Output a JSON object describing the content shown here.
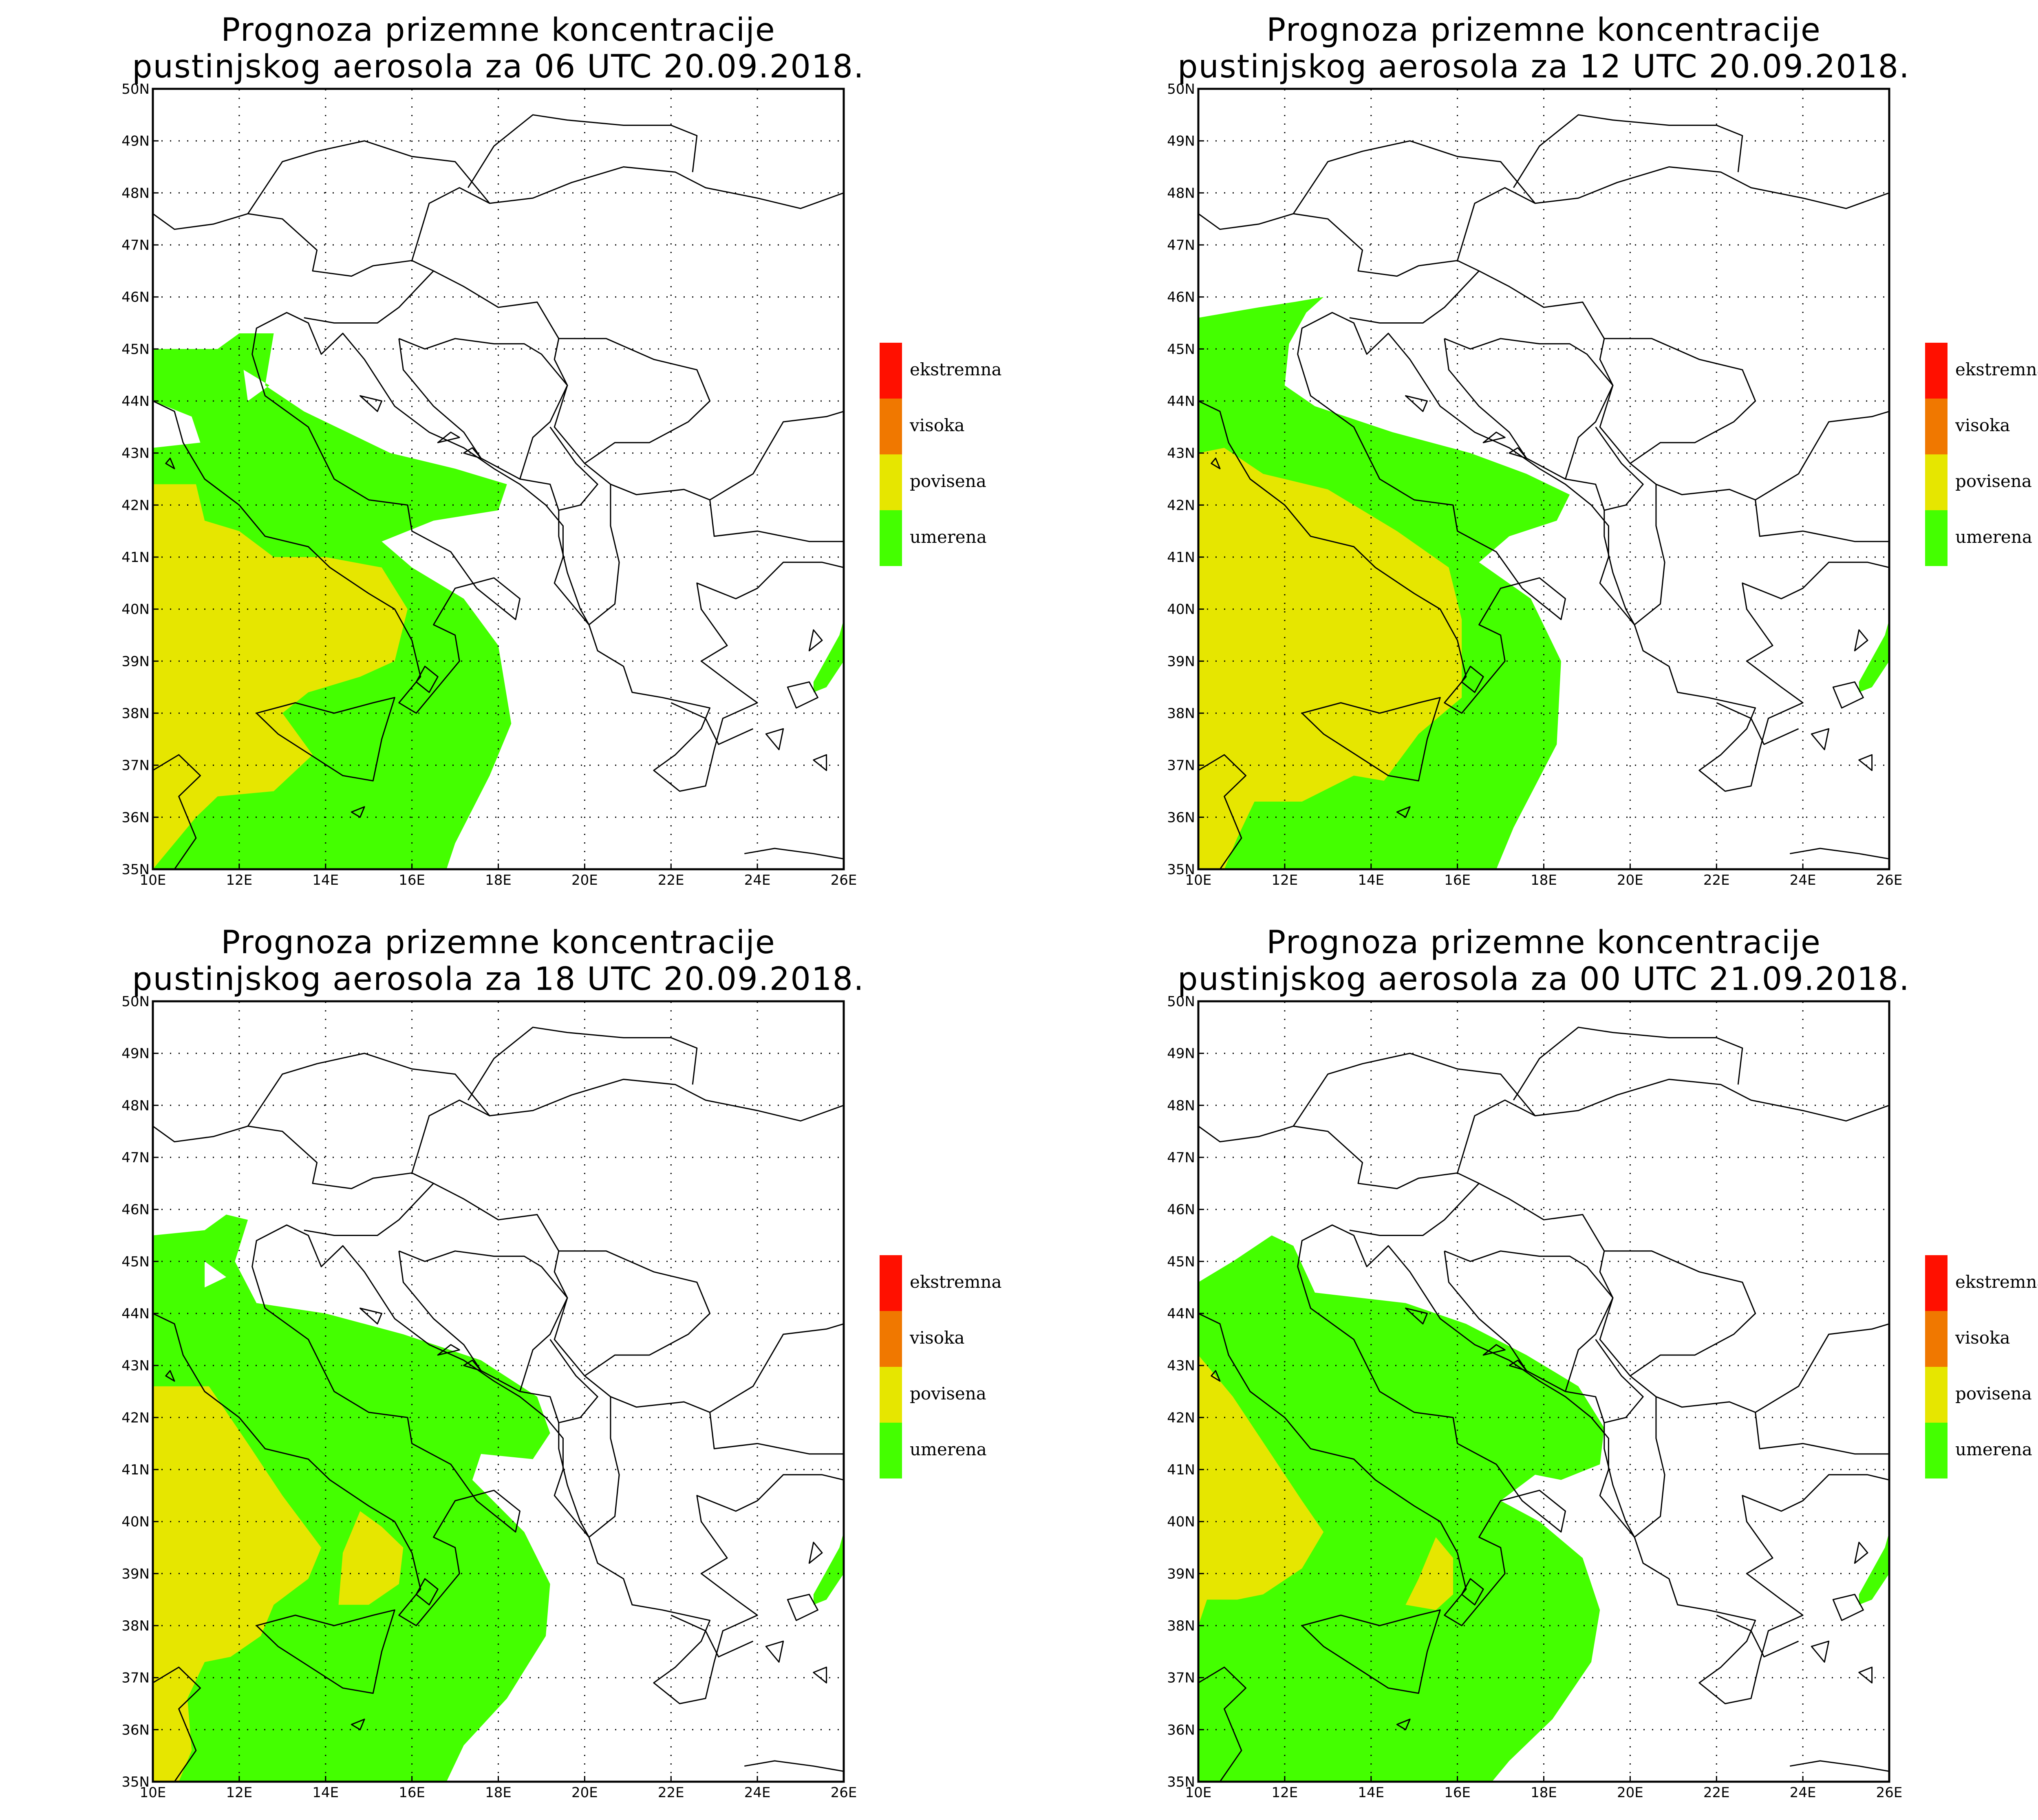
{
  "map": {
    "extent": {
      "lon": [
        10,
        26
      ],
      "lat": [
        35,
        50
      ]
    },
    "lon_ticks": [
      "10E",
      "12E",
      "14E",
      "16E",
      "18E",
      "20E",
      "22E",
      "24E",
      "26E"
    ],
    "lat_ticks": [
      "35N",
      "36N",
      "37N",
      "38N",
      "39N",
      "40N",
      "41N",
      "42N",
      "43N",
      "44N",
      "45N",
      "46N",
      "47N",
      "48N",
      "49N",
      "50N"
    ],
    "grid": "dotted"
  },
  "legend": [
    {
      "label": "ekstremna",
      "color": "#ff1000"
    },
    {
      "label": "visoka",
      "color": "#f07800"
    },
    {
      "label": "povisena",
      "color": "#e6e600"
    },
    {
      "label": "umerena",
      "color": "#44ff00"
    }
  ],
  "panels": [
    {
      "title_line1": "Prognoza prizemne koncentracije",
      "title_line2": "pustinjskog aerosola za 06 UTC 20.09.2018.",
      "green": [
        [
          10,
          45
        ],
        [
          11.5,
          45
        ],
        [
          12,
          45.3
        ],
        [
          12.8,
          45.3
        ],
        [
          12.6,
          44.3
        ],
        [
          13.5,
          43.8
        ],
        [
          15.5,
          43
        ],
        [
          17,
          42.7
        ],
        [
          18.2,
          42.4
        ],
        [
          18,
          41.9
        ],
        [
          16.5,
          41.7
        ],
        [
          15.3,
          41.3
        ],
        [
          16,
          40.8
        ],
        [
          17.2,
          40.2
        ],
        [
          18,
          39.3
        ],
        [
          18.3,
          37.8
        ],
        [
          17.8,
          36.8
        ],
        [
          17,
          35.5
        ],
        [
          16.8,
          35
        ],
        [
          10,
          35
        ]
      ],
      "yellow": [
        [
          10,
          42.4
        ],
        [
          11,
          42.4
        ],
        [
          11.2,
          41.7
        ],
        [
          12,
          41.5
        ],
        [
          12.8,
          41
        ],
        [
          14,
          41
        ],
        [
          15.3,
          40.8
        ],
        [
          15.9,
          40
        ],
        [
          15.6,
          39
        ],
        [
          14.8,
          38.7
        ],
        [
          13.6,
          38.4
        ],
        [
          13,
          38
        ],
        [
          13.7,
          37.2
        ],
        [
          12.8,
          36.5
        ],
        [
          11.5,
          36.4
        ],
        [
          11,
          36
        ],
        [
          10.4,
          35.4
        ],
        [
          10,
          35
        ]
      ],
      "holes": [
        [
          [
            10,
            44
          ],
          [
            10.9,
            43.7
          ],
          [
            11.1,
            43.2
          ],
          [
            10,
            43.1
          ]
        ],
        [
          [
            12.1,
            44.6
          ],
          [
            12.7,
            44.3
          ],
          [
            12.2,
            44
          ]
        ]
      ]
    },
    {
      "title_line1": "Prognoza prizemne koncentracije",
      "title_line2": "pustinjskog aerosola za 12 UTC 20.09.2018.",
      "green": [
        [
          10,
          45.6
        ],
        [
          11.4,
          45.8
        ],
        [
          12.2,
          45.9
        ],
        [
          12.9,
          46
        ],
        [
          12.5,
          45.7
        ],
        [
          12.1,
          45.1
        ],
        [
          12,
          44.3
        ],
        [
          12.7,
          43.9
        ],
        [
          14.5,
          43.4
        ],
        [
          16.3,
          43
        ],
        [
          17.6,
          42.6
        ],
        [
          18.6,
          42.2
        ],
        [
          18.3,
          41.7
        ],
        [
          17.2,
          41.4
        ],
        [
          16.5,
          40.9
        ],
        [
          17.7,
          40.2
        ],
        [
          18.4,
          39
        ],
        [
          18.3,
          37.4
        ],
        [
          17.3,
          35.8
        ],
        [
          16.9,
          35
        ],
        [
          10,
          35
        ]
      ],
      "yellow": [
        [
          10,
          43
        ],
        [
          10.6,
          43.1
        ],
        [
          11.5,
          42.6
        ],
        [
          13,
          42.3
        ],
        [
          14.6,
          41.5
        ],
        [
          15.8,
          40.8
        ],
        [
          16.1,
          39.8
        ],
        [
          16.1,
          38.3
        ],
        [
          15.1,
          37.6
        ],
        [
          14.3,
          36.7
        ],
        [
          13.6,
          36.8
        ],
        [
          12.4,
          36.3
        ],
        [
          11.3,
          36.3
        ],
        [
          10.9,
          35.6
        ],
        [
          10.6,
          35
        ],
        [
          10,
          35
        ]
      ],
      "holes": []
    },
    {
      "title_line1": "Prognoza prizemne koncentracije",
      "title_line2": "pustinjskog aerosola za 18 UTC 20.09.2018.",
      "green": [
        [
          10,
          45.5
        ],
        [
          11.2,
          45.6
        ],
        [
          11.7,
          45.9
        ],
        [
          12.2,
          45.8
        ],
        [
          11.9,
          45
        ],
        [
          12.4,
          44.2
        ],
        [
          14,
          44
        ],
        [
          15.8,
          43.6
        ],
        [
          17.6,
          43.1
        ],
        [
          18.9,
          42.4
        ],
        [
          19.2,
          41.7
        ],
        [
          18.8,
          41.2
        ],
        [
          17.6,
          41.3
        ],
        [
          17.4,
          40.8
        ],
        [
          18.6,
          39.8
        ],
        [
          19.2,
          38.8
        ],
        [
          19.1,
          37.8
        ],
        [
          18.2,
          36.6
        ],
        [
          17.2,
          35.7
        ],
        [
          16.8,
          35
        ],
        [
          10,
          35
        ]
      ],
      "yellow": [
        [
          10,
          42.6
        ],
        [
          11.3,
          42.6
        ],
        [
          12.2,
          41.5
        ],
        [
          13,
          40.5
        ],
        [
          13.9,
          39.5
        ],
        [
          13.6,
          38.9
        ],
        [
          12.8,
          38.4
        ],
        [
          12.5,
          37.8
        ],
        [
          11.8,
          37.4
        ],
        [
          11.2,
          37.3
        ],
        [
          10.8,
          36.6
        ],
        [
          10.9,
          35.6
        ],
        [
          10.6,
          35
        ],
        [
          10,
          35
        ]
      ],
      "yellow2": [
        [
          14.8,
          40.2
        ],
        [
          15.3,
          39.9
        ],
        [
          15.8,
          39.5
        ],
        [
          15.7,
          38.8
        ],
        [
          15,
          38.4
        ],
        [
          14.3,
          38.4
        ],
        [
          14.4,
          39.4
        ]
      ],
      "holes": [
        [
          [
            11.2,
            45
          ],
          [
            11.7,
            44.7
          ],
          [
            11.2,
            44.5
          ]
        ]
      ]
    },
    {
      "title_line1": "Prognoza prizemne koncentracije",
      "title_line2": "pustinjskog aerosola za 00 UTC 21.09.2018.",
      "green": [
        [
          10,
          44.6
        ],
        [
          10.8,
          45
        ],
        [
          11.7,
          45.5
        ],
        [
          12.2,
          45.3
        ],
        [
          12.7,
          44.4
        ],
        [
          14.8,
          44.2
        ],
        [
          16.2,
          43.8
        ],
        [
          17.6,
          43.2
        ],
        [
          18.8,
          42.6
        ],
        [
          19.4,
          41.8
        ],
        [
          19.3,
          41.1
        ],
        [
          18.4,
          40.8
        ],
        [
          17.8,
          40.9
        ],
        [
          17,
          40.4
        ],
        [
          17.9,
          40
        ],
        [
          18.9,
          39.3
        ],
        [
          19.3,
          38.3
        ],
        [
          19.1,
          37.3
        ],
        [
          18.2,
          36.2
        ],
        [
          17.2,
          35.4
        ],
        [
          16.8,
          35
        ],
        [
          10,
          35
        ]
      ],
      "yellow": [
        [
          10,
          43.2
        ],
        [
          10.8,
          42.4
        ],
        [
          11.6,
          41.4
        ],
        [
          12.4,
          40.4
        ],
        [
          12.9,
          39.8
        ],
        [
          12.4,
          39.1
        ],
        [
          11.5,
          38.6
        ],
        [
          10.9,
          38.5
        ],
        [
          10.2,
          38.5
        ],
        [
          10,
          38
        ]
      ],
      "yellow2": [
        [
          15.5,
          39.7
        ],
        [
          15.9,
          39.3
        ],
        [
          15.9,
          38.6
        ],
        [
          15.5,
          38.3
        ],
        [
          14.8,
          38.4
        ],
        [
          15.1,
          38.9
        ]
      ],
      "holes": []
    }
  ]
}
